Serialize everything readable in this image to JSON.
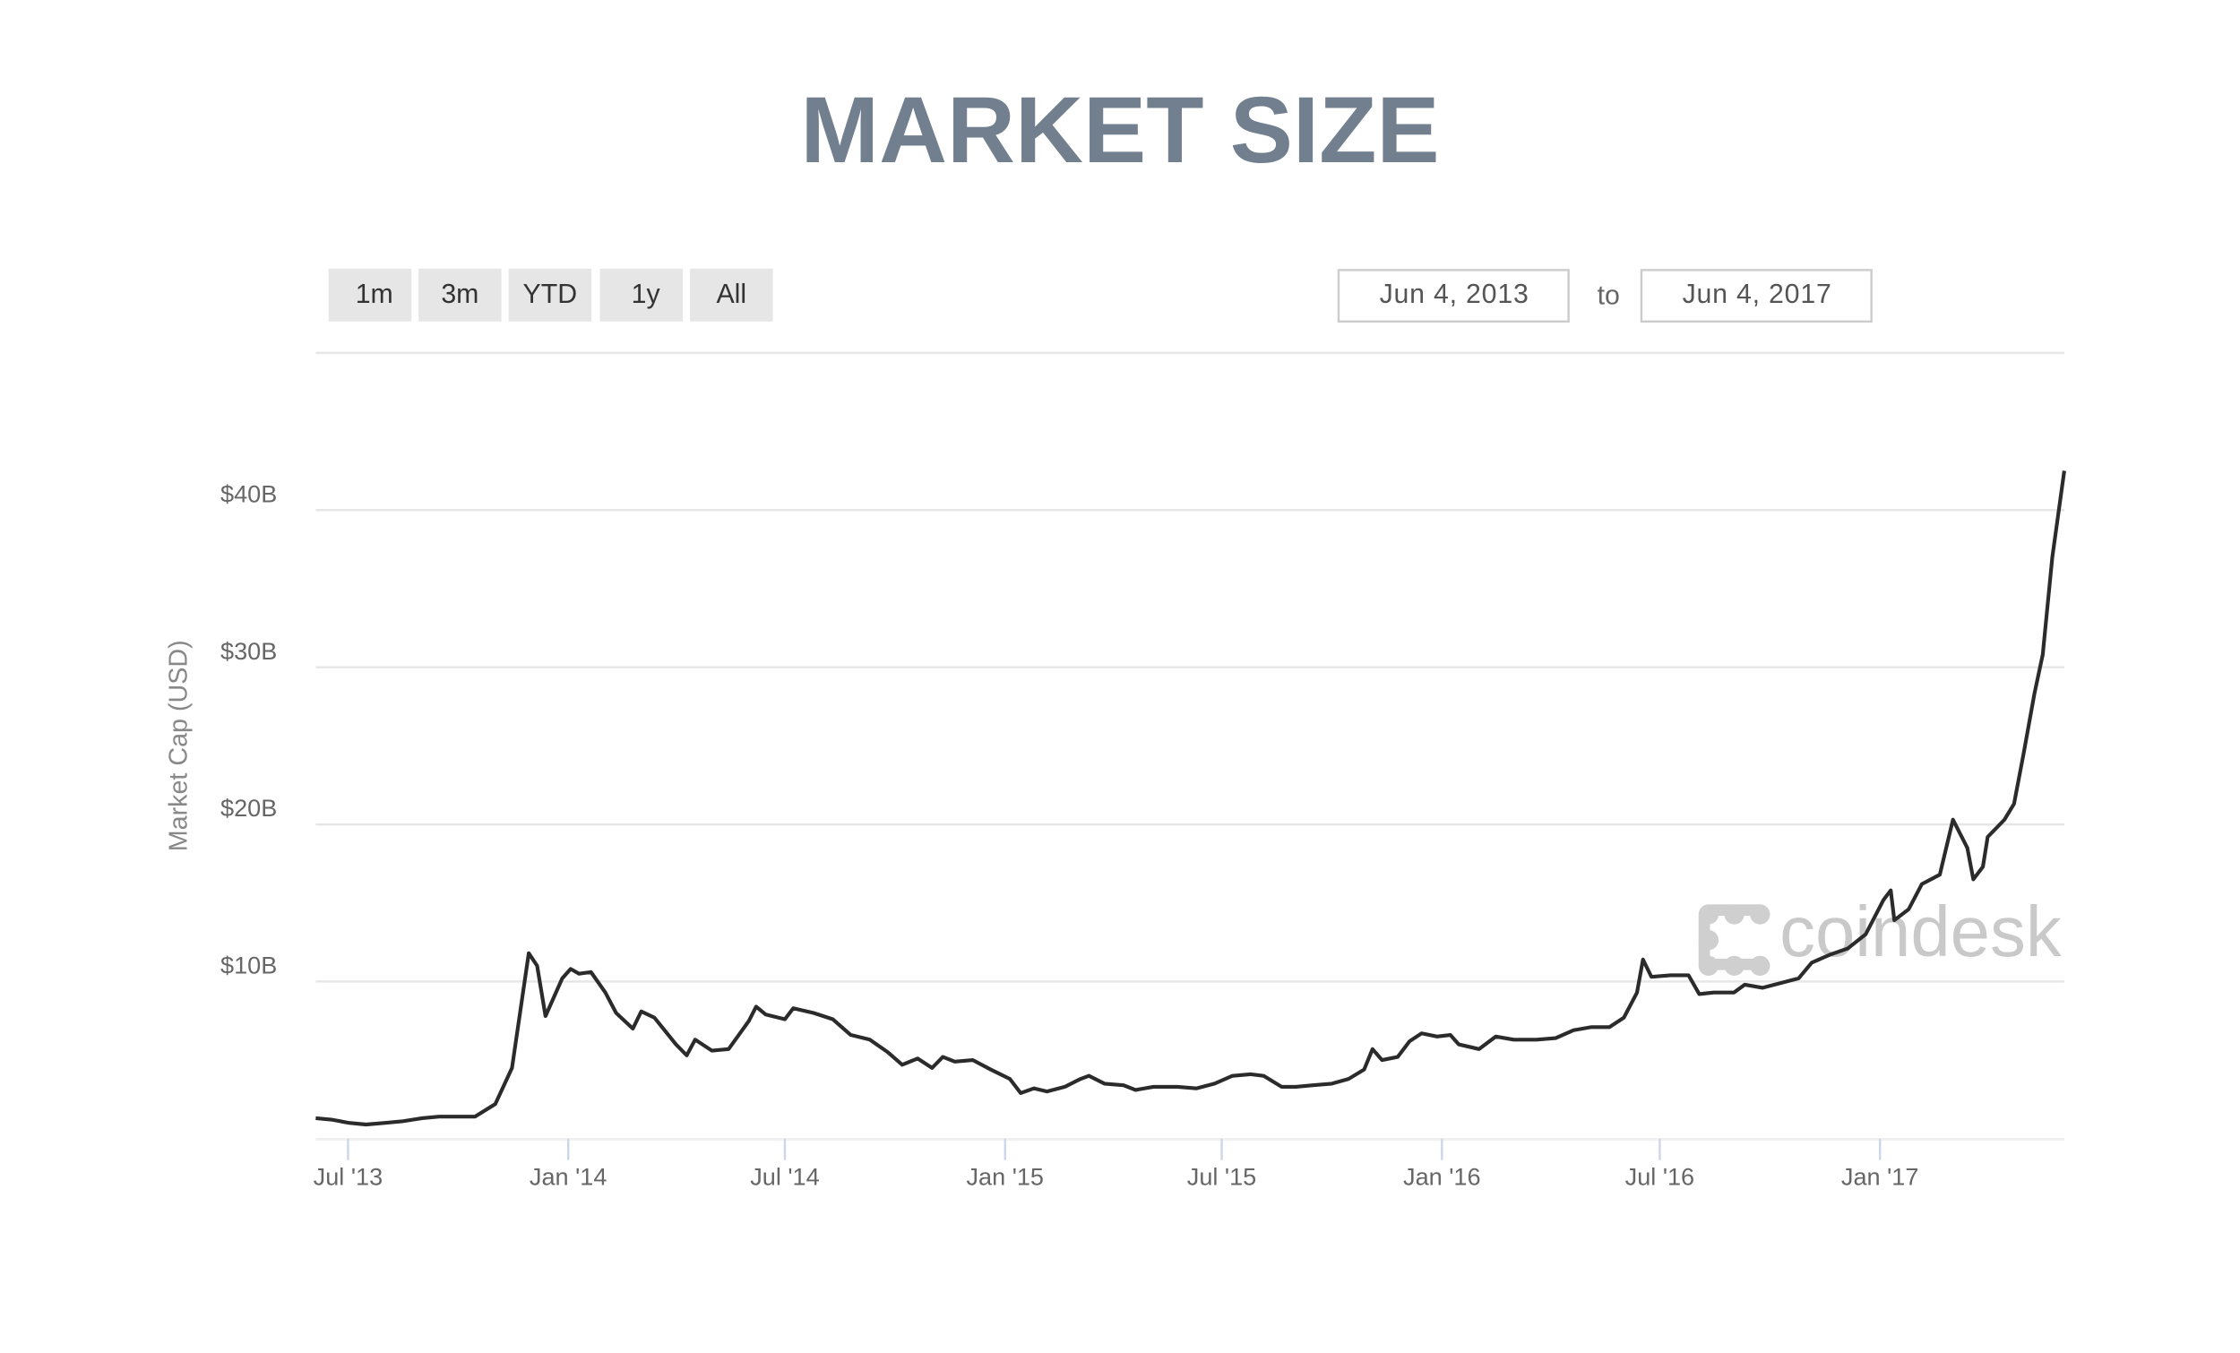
{
  "chart_data": {
    "type": "line",
    "title": "MARKET SIZE",
    "y_label": "Market Cap (USD)",
    "color": "#2b2b2b",
    "grid": true,
    "xlim": [
      "2013-06-04",
      "2017-06-04"
    ],
    "xticks": [
      {
        "value": "2013-07-01",
        "label": "Jul '13"
      },
      {
        "value": "2014-01-01",
        "label": "Jan '14"
      },
      {
        "value": "2014-07-01",
        "label": "Jul '14"
      },
      {
        "value": "2015-01-01",
        "label": "Jan '15"
      },
      {
        "value": "2015-07-01",
        "label": "Jul '15"
      },
      {
        "value": "2016-01-01",
        "label": "Jan '16"
      },
      {
        "value": "2016-07-01",
        "label": "Jul '16"
      },
      {
        "value": "2017-01-01",
        "label": "Jan '17"
      }
    ],
    "ylim": [
      0,
      50
    ],
    "yticks": [
      {
        "value": 10,
        "label": "$10B"
      },
      {
        "value": 20,
        "label": "$20B"
      },
      {
        "value": 30,
        "label": "$30B"
      },
      {
        "value": 40,
        "label": "$40B"
      }
    ],
    "x": [
      "2013-06-04",
      "2013-06-18",
      "2013-07-02",
      "2013-07-16",
      "2013-08-01",
      "2013-08-15",
      "2013-09-01",
      "2013-09-15",
      "2013-10-01",
      "2013-10-15",
      "2013-11-01",
      "2013-11-15",
      "2013-11-29",
      "2013-12-06",
      "2013-12-13",
      "2013-12-27",
      "2014-01-03",
      "2014-01-10",
      "2014-01-20",
      "2014-02-01",
      "2014-02-10",
      "2014-02-24",
      "2014-03-03",
      "2014-03-14",
      "2014-04-01",
      "2014-04-10",
      "2014-04-17",
      "2014-05-01",
      "2014-05-15",
      "2014-06-01",
      "2014-06-07",
      "2014-06-15",
      "2014-07-01",
      "2014-07-08",
      "2014-07-25",
      "2014-08-10",
      "2014-08-25",
      "2014-09-10",
      "2014-09-25",
      "2014-10-07",
      "2014-10-20",
      "2014-11-01",
      "2014-11-10",
      "2014-11-20",
      "2014-12-05",
      "2014-12-20",
      "2015-01-05",
      "2015-01-14",
      "2015-01-25",
      "2015-02-05",
      "2015-02-20",
      "2015-03-05",
      "2015-03-12",
      "2015-03-25",
      "2015-04-10",
      "2015-04-20",
      "2015-05-05",
      "2015-05-25",
      "2015-06-10",
      "2015-06-25",
      "2015-07-10",
      "2015-07-25",
      "2015-08-05",
      "2015-08-20",
      "2015-09-01",
      "2015-09-15",
      "2015-10-01",
      "2015-10-15",
      "2015-10-28",
      "2015-11-04",
      "2015-11-12",
      "2015-11-25",
      "2015-12-05",
      "2015-12-15",
      "2015-12-28",
      "2016-01-08",
      "2016-01-15",
      "2016-02-01",
      "2016-02-15",
      "2016-03-01",
      "2016-03-20",
      "2016-04-05",
      "2016-04-20",
      "2016-05-05",
      "2016-05-20",
      "2016-06-01",
      "2016-06-12",
      "2016-06-17",
      "2016-06-24",
      "2016-07-10",
      "2016-07-25",
      "2016-08-03",
      "2016-08-15",
      "2016-09-01",
      "2016-09-10",
      "2016-09-25",
      "2016-10-10",
      "2016-10-25",
      "2016-11-05",
      "2016-11-20",
      "2016-12-05",
      "2016-12-20",
      "2017-01-04",
      "2017-01-10",
      "2017-01-13",
      "2017-01-25",
      "2017-02-05",
      "2017-02-20",
      "2017-03-03",
      "2017-03-15",
      "2017-03-20",
      "2017-03-28",
      "2017-04-01",
      "2017-04-15",
      "2017-04-23",
      "2017-05-01",
      "2017-05-10",
      "2017-05-17",
      "2017-05-25",
      "2017-06-04"
    ],
    "values": [
      1.3,
      1.2,
      1.0,
      0.9,
      1.0,
      1.1,
      1.3,
      1.4,
      1.4,
      1.4,
      2.2,
      4.5,
      11.8,
      11.0,
      7.8,
      10.2,
      10.8,
      10.5,
      10.6,
      9.3,
      8.0,
      7.0,
      8.1,
      7.7,
      6.0,
      5.3,
      6.3,
      5.6,
      5.7,
      7.5,
      8.4,
      7.9,
      7.6,
      8.3,
      8.0,
      7.6,
      6.6,
      6.3,
      5.5,
      4.7,
      5.1,
      4.5,
      5.2,
      4.9,
      5.0,
      4.4,
      3.8,
      2.9,
      3.2,
      3.0,
      3.3,
      3.8,
      4.0,
      3.5,
      3.4,
      3.1,
      3.3,
      3.3,
      3.2,
      3.5,
      4.0,
      4.1,
      4.0,
      3.3,
      3.3,
      3.4,
      3.5,
      3.8,
      4.4,
      5.7,
      5.0,
      5.2,
      6.2,
      6.7,
      6.5,
      6.6,
      6.0,
      5.7,
      6.5,
      6.3,
      6.3,
      6.4,
      6.9,
      7.1,
      7.1,
      7.7,
      9.3,
      11.4,
      10.3,
      10.4,
      10.4,
      9.2,
      9.3,
      9.3,
      9.8,
      9.6,
      9.9,
      10.2,
      11.2,
      11.7,
      12.1,
      13.0,
      15.2,
      15.8,
      13.9,
      14.6,
      16.2,
      16.8,
      20.3,
      18.5,
      16.5,
      17.3,
      19.2,
      20.3,
      21.3,
      24.5,
      28.3,
      30.8,
      37,
      42.5
    ]
  },
  "controls": {
    "ranges": [
      "1m",
      "3m",
      "YTD",
      "1y",
      "All"
    ],
    "date_from": "Jun 4, 2013",
    "to": "to",
    "date_to": "Jun 4, 2017"
  },
  "watermark": "coindesk"
}
